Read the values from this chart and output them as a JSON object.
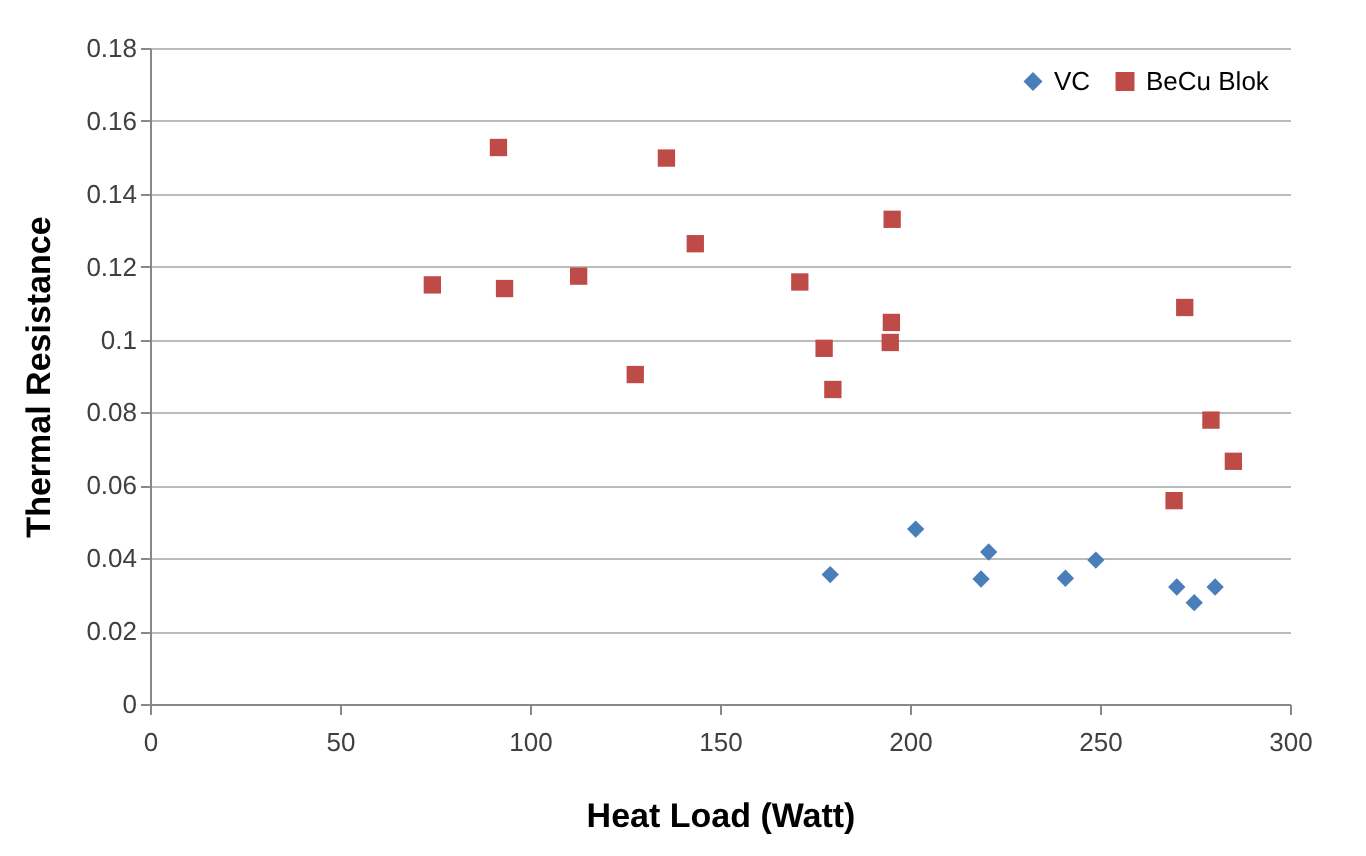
{
  "chart_data": {
    "type": "scatter",
    "xlabel": "Heat Load (Watt)",
    "ylabel": "Thermal Resistance",
    "xlim": [
      0,
      300
    ],
    "xticks": [
      0,
      50,
      100,
      150,
      200,
      250,
      300
    ],
    "ylim": [
      0,
      0.18
    ],
    "yticks": [
      0,
      0.02,
      0.04,
      0.06,
      0.08,
      0.1,
      0.12,
      0.14,
      0.16,
      0.18
    ],
    "grid": "y",
    "legend": "top right",
    "series": [
      {
        "name": "VC",
        "color": "#4a7ebb",
        "marker": "diamond",
        "x": [
          179,
          201.5,
          218.7,
          220.7,
          240.9,
          248.9,
          270.2,
          274.8,
          280.3
        ],
        "values": [
          0.0355,
          0.048,
          0.0343,
          0.0417,
          0.0345,
          0.0395,
          0.0321,
          0.0278,
          0.0321
        ]
      },
      {
        "name": "BeCu Blok",
        "color": "#be4b48",
        "marker": "square",
        "x": [
          74.3,
          91.7,
          93.3,
          112.8,
          127.7,
          135.9,
          143.5,
          171,
          177.4,
          179.7,
          195.3,
          195.1,
          194.8,
          272.3,
          279.2,
          285.1,
          269.5
        ],
        "values": [
          0.115,
          0.1527,
          0.114,
          0.1174,
          0.0904,
          0.1498,
          0.1263,
          0.1158,
          0.0976,
          0.0863,
          0.133,
          0.1047,
          0.0992,
          0.1088,
          0.0779,
          0.0666,
          0.0558
        ]
      }
    ]
  }
}
